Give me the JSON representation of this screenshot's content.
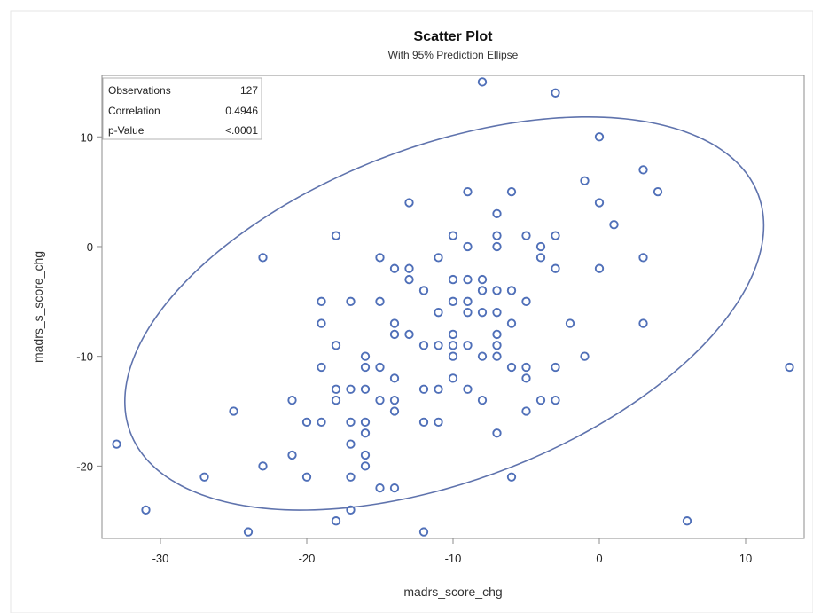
{
  "chart_data": {
    "type": "scatter",
    "title": "Scatter Plot",
    "subtitle": "With 95% Prediction Ellipse",
    "xlabel": "madrs_score_chg",
    "ylabel": "madrs_s_score_chg",
    "xlim": [
      -34,
      14
    ],
    "ylim": [
      -26.6,
      15.6
    ],
    "xticks": [
      -30,
      -20,
      -10,
      0,
      10
    ],
    "yticks": [
      -20,
      -10,
      0,
      10
    ],
    "grid": false,
    "stats": [
      {
        "label": "Observations",
        "value": "127"
      },
      {
        "label": "Correlation",
        "value": "0.4946"
      },
      {
        "label": "p-Value",
        "value": "<.0001"
      }
    ],
    "colors": {
      "marker": "#4f6fb8",
      "ellipse": "#5f73ad",
      "frame": "#8c8c8c",
      "text": "#222222"
    },
    "ellipse": {
      "center": [
        -10.6,
        -6.1
      ],
      "semi_axis_major": 24.3,
      "semi_axis_minor": 14.4,
      "angle_deg": 33,
      "clipped_to_plot_area": true
    },
    "points": [
      {
        "x": -33,
        "y": -18
      },
      {
        "x": -31,
        "y": -24
      },
      {
        "x": -27,
        "y": -21
      },
      {
        "x": -25,
        "y": -15
      },
      {
        "x": -24,
        "y": -26
      },
      {
        "x": -23,
        "y": -20
      },
      {
        "x": -23,
        "y": -1
      },
      {
        "x": -21,
        "y": -19
      },
      {
        "x": -21,
        "y": -14
      },
      {
        "x": -20,
        "y": -21
      },
      {
        "x": -20,
        "y": -16
      },
      {
        "x": -19,
        "y": -16
      },
      {
        "x": -19,
        "y": -11
      },
      {
        "x": -19,
        "y": -7
      },
      {
        "x": -19,
        "y": -5
      },
      {
        "x": -18,
        "y": -25
      },
      {
        "x": -18,
        "y": -14
      },
      {
        "x": -18,
        "y": -13
      },
      {
        "x": -18,
        "y": -9
      },
      {
        "x": -18,
        "y": 1
      },
      {
        "x": -17,
        "y": -24
      },
      {
        "x": -17,
        "y": -21
      },
      {
        "x": -17,
        "y": -18
      },
      {
        "x": -17,
        "y": -16
      },
      {
        "x": -17,
        "y": -13
      },
      {
        "x": -17,
        "y": -5
      },
      {
        "x": -16,
        "y": -20
      },
      {
        "x": -16,
        "y": -19
      },
      {
        "x": -16,
        "y": -17
      },
      {
        "x": -16,
        "y": -16
      },
      {
        "x": -16,
        "y": -13
      },
      {
        "x": -16,
        "y": -11
      },
      {
        "x": -16,
        "y": -10
      },
      {
        "x": -15,
        "y": -22
      },
      {
        "x": -15,
        "y": -14
      },
      {
        "x": -15,
        "y": -11
      },
      {
        "x": -15,
        "y": -5
      },
      {
        "x": -15,
        "y": -1
      },
      {
        "x": -14,
        "y": -22
      },
      {
        "x": -14,
        "y": -15
      },
      {
        "x": -14,
        "y": -14
      },
      {
        "x": -14,
        "y": -12
      },
      {
        "x": -14,
        "y": -8
      },
      {
        "x": -14,
        "y": -7
      },
      {
        "x": -14,
        "y": -2
      },
      {
        "x": -13,
        "y": -8
      },
      {
        "x": -13,
        "y": -3
      },
      {
        "x": -13,
        "y": -2
      },
      {
        "x": -13,
        "y": 4
      },
      {
        "x": -12,
        "y": -26
      },
      {
        "x": -12,
        "y": -16
      },
      {
        "x": -12,
        "y": -13
      },
      {
        "x": -12,
        "y": -9
      },
      {
        "x": -12,
        "y": -4
      },
      {
        "x": -11,
        "y": -16
      },
      {
        "x": -11,
        "y": -13
      },
      {
        "x": -11,
        "y": -9
      },
      {
        "x": -11,
        "y": -6
      },
      {
        "x": -11,
        "y": -1
      },
      {
        "x": -10,
        "y": -12
      },
      {
        "x": -10,
        "y": -10
      },
      {
        "x": -10,
        "y": -9
      },
      {
        "x": -10,
        "y": -8
      },
      {
        "x": -10,
        "y": -5
      },
      {
        "x": -10,
        "y": -3
      },
      {
        "x": -10,
        "y": 1
      },
      {
        "x": -9,
        "y": -13
      },
      {
        "x": -9,
        "y": -9
      },
      {
        "x": -9,
        "y": -6
      },
      {
        "x": -9,
        "y": -5
      },
      {
        "x": -9,
        "y": -3
      },
      {
        "x": -9,
        "y": 0
      },
      {
        "x": -9,
        "y": 5
      },
      {
        "x": -8,
        "y": -14
      },
      {
        "x": -8,
        "y": -10
      },
      {
        "x": -8,
        "y": -6
      },
      {
        "x": -8,
        "y": -4
      },
      {
        "x": -8,
        "y": -3
      },
      {
        "x": -8,
        "y": 15
      },
      {
        "x": -7,
        "y": -17
      },
      {
        "x": -7,
        "y": -10
      },
      {
        "x": -7,
        "y": -9
      },
      {
        "x": -7,
        "y": -8
      },
      {
        "x": -7,
        "y": -6
      },
      {
        "x": -7,
        "y": -4
      },
      {
        "x": -7,
        "y": 0
      },
      {
        "x": -7,
        "y": 1
      },
      {
        "x": -7,
        "y": 3
      },
      {
        "x": -6,
        "y": -21
      },
      {
        "x": -6,
        "y": -11
      },
      {
        "x": -6,
        "y": -7
      },
      {
        "x": -6,
        "y": -4
      },
      {
        "x": -6,
        "y": 5
      },
      {
        "x": -5,
        "y": -15
      },
      {
        "x": -5,
        "y": -12
      },
      {
        "x": -5,
        "y": -11
      },
      {
        "x": -5,
        "y": -5
      },
      {
        "x": -5,
        "y": 1
      },
      {
        "x": -4,
        "y": -14
      },
      {
        "x": -4,
        "y": -1
      },
      {
        "x": -4,
        "y": 0
      },
      {
        "x": -3,
        "y": -14
      },
      {
        "x": -3,
        "y": -11
      },
      {
        "x": -3,
        "y": -2
      },
      {
        "x": -3,
        "y": 1
      },
      {
        "x": -3,
        "y": 14
      },
      {
        "x": -2,
        "y": -7
      },
      {
        "x": -1,
        "y": -10
      },
      {
        "x": -1,
        "y": 6
      },
      {
        "x": 0,
        "y": -2
      },
      {
        "x": 0,
        "y": 4
      },
      {
        "x": 0,
        "y": 10
      },
      {
        "x": 1,
        "y": 2
      },
      {
        "x": 3,
        "y": -7
      },
      {
        "x": 3,
        "y": -1
      },
      {
        "x": 3,
        "y": 7
      },
      {
        "x": 4,
        "y": 5
      },
      {
        "x": 6,
        "y": -25
      },
      {
        "x": 13,
        "y": -11
      }
    ]
  }
}
